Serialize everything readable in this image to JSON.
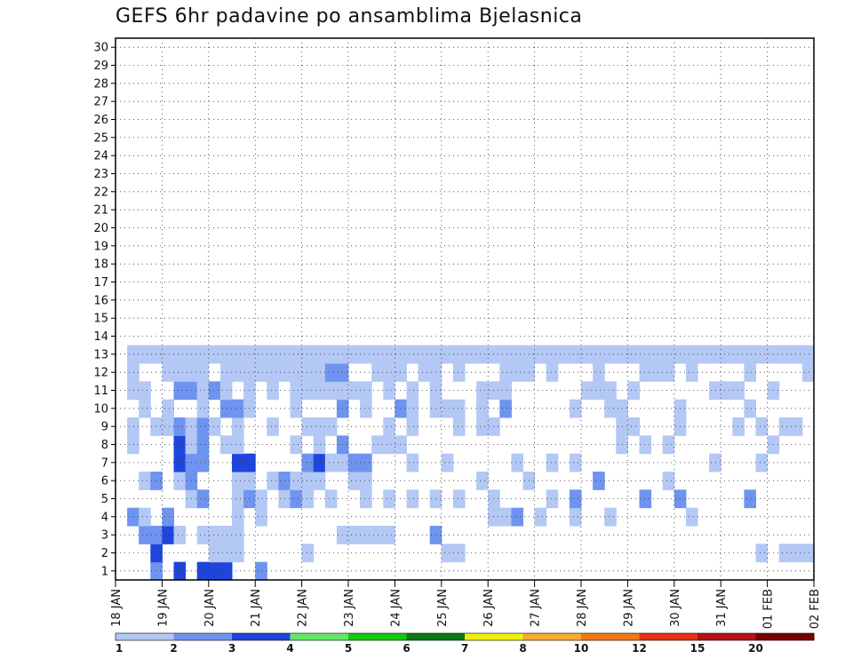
{
  "chart_data": {
    "type": "heatmap",
    "title": "GEFS 6hr padavine po ansamblima Bjelasnica",
    "y_members": [
      "1",
      "2",
      "3",
      "4",
      "5",
      "6",
      "7",
      "8",
      "9",
      "10",
      "11",
      "12",
      "13",
      "14",
      "15",
      "16",
      "17",
      "18",
      "19",
      "20",
      "21",
      "22",
      "23",
      "24",
      "25",
      "26",
      "27",
      "28",
      "29",
      "30"
    ],
    "x_tick_labels": [
      "18 JAN",
      "19 JAN",
      "20 JAN",
      "21 JAN",
      "22 JAN",
      "23 JAN",
      "24 JAN",
      "25 JAN",
      "26 JAN",
      "27 JAN",
      "28 JAN",
      "29 JAN",
      "30 JAN",
      "31 JAN",
      "01 FEB",
      "02 FEB"
    ],
    "x_steps_per_day": 4,
    "x_total_steps": 60,
    "color_scale": {
      "levels": [
        1,
        2,
        3,
        4,
        5,
        6,
        7,
        8,
        10,
        12,
        15,
        20
      ],
      "colors": [
        "#b4c8f5",
        "#6e94f0",
        "#1e46dc",
        "#64e664",
        "#14c814",
        "#0a7814",
        "#f0f00a",
        "#faaa32",
        "#f07814",
        "#e63214",
        "#b41414",
        "#780000"
      ]
    },
    "legend_labels": [
      "1",
      "2",
      "3",
      "4",
      "5",
      "6",
      "7",
      "8",
      "10",
      "12",
      "15",
      "20"
    ],
    "grid": true,
    "cells": [
      [
        1,
        4,
        2
      ],
      [
        1,
        6,
        3
      ],
      [
        1,
        8,
        3
      ],
      [
        1,
        9,
        3
      ],
      [
        1,
        10,
        3
      ],
      [
        1,
        13,
        2
      ],
      [
        2,
        4,
        3
      ],
      [
        2,
        9,
        1
      ],
      [
        2,
        10,
        1
      ],
      [
        2,
        11,
        1
      ],
      [
        2,
        17,
        1
      ],
      [
        2,
        29,
        1
      ],
      [
        2,
        30,
        1
      ],
      [
        2,
        56,
        1
      ],
      [
        2,
        58,
        1
      ],
      [
        2,
        59,
        1
      ],
      [
        2,
        60,
        1
      ],
      [
        3,
        3,
        2
      ],
      [
        3,
        4,
        2
      ],
      [
        3,
        5,
        3
      ],
      [
        3,
        6,
        1
      ],
      [
        3,
        8,
        1
      ],
      [
        3,
        9,
        1
      ],
      [
        3,
        10,
        1
      ],
      [
        3,
        11,
        1
      ],
      [
        3,
        20,
        1
      ],
      [
        3,
        21,
        1
      ],
      [
        3,
        22,
        1
      ],
      [
        3,
        23,
        1
      ],
      [
        3,
        24,
        1
      ],
      [
        3,
        28,
        2
      ],
      [
        4,
        2,
        2
      ],
      [
        4,
        3,
        1
      ],
      [
        4,
        5,
        2
      ],
      [
        4,
        11,
        1
      ],
      [
        4,
        13,
        1
      ],
      [
        4,
        33,
        1
      ],
      [
        4,
        34,
        1
      ],
      [
        4,
        35,
        2
      ],
      [
        4,
        37,
        1
      ],
      [
        4,
        40,
        1
      ],
      [
        4,
        43,
        1
      ],
      [
        4,
        50,
        1
      ],
      [
        5,
        7,
        1
      ],
      [
        5,
        8,
        2
      ],
      [
        5,
        11,
        1
      ],
      [
        5,
        12,
        2
      ],
      [
        5,
        13,
        1
      ],
      [
        5,
        15,
        1
      ],
      [
        5,
        16,
        2
      ],
      [
        5,
        17,
        1
      ],
      [
        5,
        19,
        1
      ],
      [
        5,
        22,
        1
      ],
      [
        5,
        24,
        1
      ],
      [
        5,
        26,
        1
      ],
      [
        5,
        28,
        1
      ],
      [
        5,
        30,
        1
      ],
      [
        5,
        33,
        1
      ],
      [
        5,
        38,
        1
      ],
      [
        5,
        40,
        2
      ],
      [
        5,
        46,
        2
      ],
      [
        5,
        49,
        2
      ],
      [
        5,
        55,
        2
      ],
      [
        6,
        3,
        1
      ],
      [
        6,
        4,
        2
      ],
      [
        6,
        6,
        1
      ],
      [
        6,
        7,
        2
      ],
      [
        6,
        11,
        1
      ],
      [
        6,
        12,
        1
      ],
      [
        6,
        14,
        1
      ],
      [
        6,
        15,
        2
      ],
      [
        6,
        16,
        1
      ],
      [
        6,
        17,
        1
      ],
      [
        6,
        18,
        1
      ],
      [
        6,
        21,
        1
      ],
      [
        6,
        22,
        1
      ],
      [
        6,
        32,
        1
      ],
      [
        6,
        36,
        1
      ],
      [
        6,
        42,
        2
      ],
      [
        6,
        48,
        1
      ],
      [
        7,
        6,
        3
      ],
      [
        7,
        7,
        2
      ],
      [
        7,
        8,
        2
      ],
      [
        7,
        11,
        3
      ],
      [
        7,
        12,
        3
      ],
      [
        7,
        17,
        2
      ],
      [
        7,
        18,
        3
      ],
      [
        7,
        19,
        1
      ],
      [
        7,
        20,
        1
      ],
      [
        7,
        21,
        2
      ],
      [
        7,
        22,
        2
      ],
      [
        7,
        26,
        1
      ],
      [
        7,
        29,
        1
      ],
      [
        7,
        35,
        1
      ],
      [
        7,
        38,
        1
      ],
      [
        7,
        40,
        1
      ],
      [
        7,
        52,
        1
      ],
      [
        7,
        56,
        1
      ],
      [
        8,
        2,
        1
      ],
      [
        8,
        6,
        3
      ],
      [
        8,
        7,
        1
      ],
      [
        8,
        8,
        2
      ],
      [
        8,
        10,
        1
      ],
      [
        8,
        11,
        1
      ],
      [
        8,
        16,
        1
      ],
      [
        8,
        18,
        1
      ],
      [
        8,
        20,
        2
      ],
      [
        8,
        23,
        1
      ],
      [
        8,
        24,
        1
      ],
      [
        8,
        25,
        1
      ],
      [
        8,
        44,
        1
      ],
      [
        8,
        46,
        1
      ],
      [
        8,
        48,
        1
      ],
      [
        8,
        57,
        1
      ],
      [
        9,
        2,
        1
      ],
      [
        9,
        4,
        1
      ],
      [
        9,
        5,
        1
      ],
      [
        9,
        6,
        2
      ],
      [
        9,
        7,
        1
      ],
      [
        9,
        8,
        2
      ],
      [
        9,
        9,
        1
      ],
      [
        9,
        11,
        1
      ],
      [
        9,
        14,
        1
      ],
      [
        9,
        17,
        1
      ],
      [
        9,
        18,
        1
      ],
      [
        9,
        19,
        1
      ],
      [
        9,
        24,
        1
      ],
      [
        9,
        26,
        1
      ],
      [
        9,
        30,
        1
      ],
      [
        9,
        32,
        1
      ],
      [
        9,
        33,
        1
      ],
      [
        9,
        44,
        1
      ],
      [
        9,
        45,
        1
      ],
      [
        9,
        49,
        1
      ],
      [
        9,
        54,
        1
      ],
      [
        9,
        56,
        1
      ],
      [
        9,
        58,
        1
      ],
      [
        9,
        59,
        1
      ],
      [
        10,
        3,
        1
      ],
      [
        10,
        5,
        1
      ],
      [
        10,
        8,
        1
      ],
      [
        10,
        10,
        2
      ],
      [
        10,
        11,
        2
      ],
      [
        10,
        12,
        1
      ],
      [
        10,
        16,
        1
      ],
      [
        10,
        20,
        2
      ],
      [
        10,
        22,
        1
      ],
      [
        10,
        25,
        2
      ],
      [
        10,
        26,
        1
      ],
      [
        10,
        28,
        1
      ],
      [
        10,
        29,
        1
      ],
      [
        10,
        30,
        1
      ],
      [
        10,
        32,
        1
      ],
      [
        10,
        34,
        2
      ],
      [
        10,
        40,
        1
      ],
      [
        10,
        43,
        1
      ],
      [
        10,
        44,
        1
      ],
      [
        10,
        49,
        1
      ],
      [
        10,
        55,
        1
      ],
      [
        11,
        2,
        1
      ],
      [
        11,
        3,
        1
      ],
      [
        11,
        6,
        2
      ],
      [
        11,
        7,
        2
      ],
      [
        11,
        8,
        1
      ],
      [
        11,
        9,
        2
      ],
      [
        11,
        10,
        1
      ],
      [
        11,
        12,
        1
      ],
      [
        11,
        14,
        1
      ],
      [
        11,
        16,
        1
      ],
      [
        11,
        17,
        1
      ],
      [
        11,
        18,
        1
      ],
      [
        11,
        19,
        1
      ],
      [
        11,
        20,
        1
      ],
      [
        11,
        21,
        1
      ],
      [
        11,
        22,
        1
      ],
      [
        11,
        24,
        1
      ],
      [
        11,
        26,
        1
      ],
      [
        11,
        28,
        1
      ],
      [
        11,
        32,
        1
      ],
      [
        11,
        33,
        1
      ],
      [
        11,
        34,
        1
      ],
      [
        11,
        41,
        1
      ],
      [
        11,
        42,
        1
      ],
      [
        11,
        43,
        1
      ],
      [
        11,
        45,
        1
      ],
      [
        11,
        52,
        1
      ],
      [
        11,
        53,
        1
      ],
      [
        11,
        54,
        1
      ],
      [
        11,
        57,
        1
      ],
      [
        12,
        2,
        1
      ],
      [
        12,
        5,
        1
      ],
      [
        12,
        6,
        1
      ],
      [
        12,
        7,
        1
      ],
      [
        12,
        8,
        1
      ],
      [
        12,
        10,
        1
      ],
      [
        12,
        11,
        1
      ],
      [
        12,
        12,
        1
      ],
      [
        12,
        13,
        1
      ],
      [
        12,
        14,
        1
      ],
      [
        12,
        15,
        1
      ],
      [
        12,
        16,
        1
      ],
      [
        12,
        17,
        1
      ],
      [
        12,
        18,
        1
      ],
      [
        12,
        19,
        2
      ],
      [
        12,
        20,
        2
      ],
      [
        12,
        23,
        1
      ],
      [
        12,
        24,
        1
      ],
      [
        12,
        25,
        1
      ],
      [
        12,
        27,
        1
      ],
      [
        12,
        28,
        1
      ],
      [
        12,
        30,
        1
      ],
      [
        12,
        34,
        1
      ],
      [
        12,
        35,
        1
      ],
      [
        12,
        36,
        1
      ],
      [
        12,
        38,
        1
      ],
      [
        12,
        42,
        1
      ],
      [
        12,
        46,
        1
      ],
      [
        12,
        47,
        1
      ],
      [
        12,
        48,
        1
      ],
      [
        12,
        50,
        1
      ],
      [
        12,
        55,
        1
      ],
      [
        12,
        60,
        1
      ],
      [
        13,
        2,
        1
      ],
      [
        13,
        3,
        1
      ],
      [
        13,
        4,
        1
      ],
      [
        13,
        5,
        1
      ],
      [
        13,
        6,
        1
      ],
      [
        13,
        7,
        1
      ],
      [
        13,
        8,
        1
      ],
      [
        13,
        9,
        1
      ],
      [
        13,
        10,
        1
      ],
      [
        13,
        11,
        1
      ],
      [
        13,
        12,
        1
      ],
      [
        13,
        13,
        1
      ],
      [
        13,
        14,
        1
      ],
      [
        13,
        15,
        1
      ],
      [
        13,
        16,
        1
      ],
      [
        13,
        17,
        1
      ],
      [
        13,
        18,
        1
      ],
      [
        13,
        19,
        1
      ],
      [
        13,
        20,
        1
      ],
      [
        13,
        21,
        1
      ],
      [
        13,
        22,
        1
      ],
      [
        13,
        23,
        1
      ],
      [
        13,
        24,
        1
      ],
      [
        13,
        25,
        1
      ],
      [
        13,
        26,
        1
      ],
      [
        13,
        27,
        1
      ],
      [
        13,
        28,
        1
      ],
      [
        13,
        29,
        1
      ],
      [
        13,
        30,
        1
      ],
      [
        13,
        31,
        1
      ],
      [
        13,
        32,
        1
      ],
      [
        13,
        33,
        1
      ],
      [
        13,
        34,
        1
      ],
      [
        13,
        35,
        1
      ],
      [
        13,
        36,
        1
      ],
      [
        13,
        37,
        1
      ],
      [
        13,
        38,
        1
      ],
      [
        13,
        39,
        1
      ],
      [
        13,
        40,
        1
      ],
      [
        13,
        41,
        1
      ],
      [
        13,
        42,
        1
      ],
      [
        13,
        43,
        1
      ],
      [
        13,
        44,
        1
      ],
      [
        13,
        45,
        1
      ],
      [
        13,
        46,
        1
      ],
      [
        13,
        47,
        1
      ],
      [
        13,
        48,
        1
      ],
      [
        13,
        49,
        1
      ],
      [
        13,
        50,
        1
      ],
      [
        13,
        51,
        1
      ],
      [
        13,
        52,
        1
      ],
      [
        13,
        53,
        1
      ],
      [
        13,
        54,
        1
      ],
      [
        13,
        55,
        1
      ],
      [
        13,
        56,
        1
      ],
      [
        13,
        57,
        1
      ],
      [
        13,
        58,
        1
      ],
      [
        13,
        59,
        1
      ],
      [
        13,
        60,
        1
      ]
    ]
  }
}
